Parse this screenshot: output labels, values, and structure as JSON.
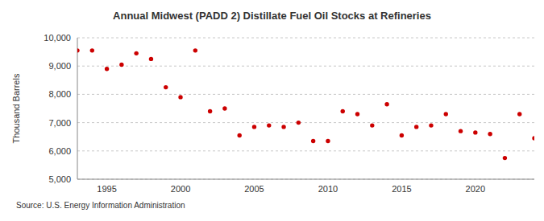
{
  "chart_data": {
    "type": "scatter",
    "title": "Annual Midwest (PADD 2) Distillate Fuel Oil Stocks at Refineries",
    "y_label": "Thousand Barrels",
    "source": "Source: U.S. Energy Information Administration",
    "x": [
      1993,
      1994,
      1995,
      1996,
      1997,
      1998,
      1999,
      2000,
      2001,
      2002,
      2003,
      2004,
      2005,
      2006,
      2007,
      2008,
      2009,
      2010,
      2011,
      2012,
      2013,
      2014,
      2015,
      2016,
      2017,
      2018,
      2019,
      2020,
      2021,
      2022,
      2023,
      2024
    ],
    "values": [
      9550,
      9550,
      8900,
      9050,
      9450,
      9250,
      8250,
      7900,
      9550,
      7400,
      7500,
      6550,
      6850,
      6900,
      6850,
      7000,
      6350,
      6350,
      7400,
      7300,
      6900,
      7650,
      6550,
      6850,
      6900,
      7300,
      6700,
      6650,
      6600,
      5750,
      7300,
      6450
    ],
    "color": "#cc0000",
    "marker": "circle",
    "xlim": [
      1993,
      2024
    ],
    "xticks": [
      1995,
      2000,
      2005,
      2010,
      2015,
      2020
    ],
    "ylim": [
      5000,
      10000
    ],
    "yticks": [
      {
        "value": 5000,
        "label": "5,000"
      },
      {
        "value": 6000,
        "label": "6,000"
      },
      {
        "value": 7000,
        "label": "7,000"
      },
      {
        "value": 8000,
        "label": "8,000"
      },
      {
        "value": 9000,
        "label": "9,000"
      },
      {
        "value": 10000,
        "label": "10,000"
      }
    ],
    "grid": true
  }
}
